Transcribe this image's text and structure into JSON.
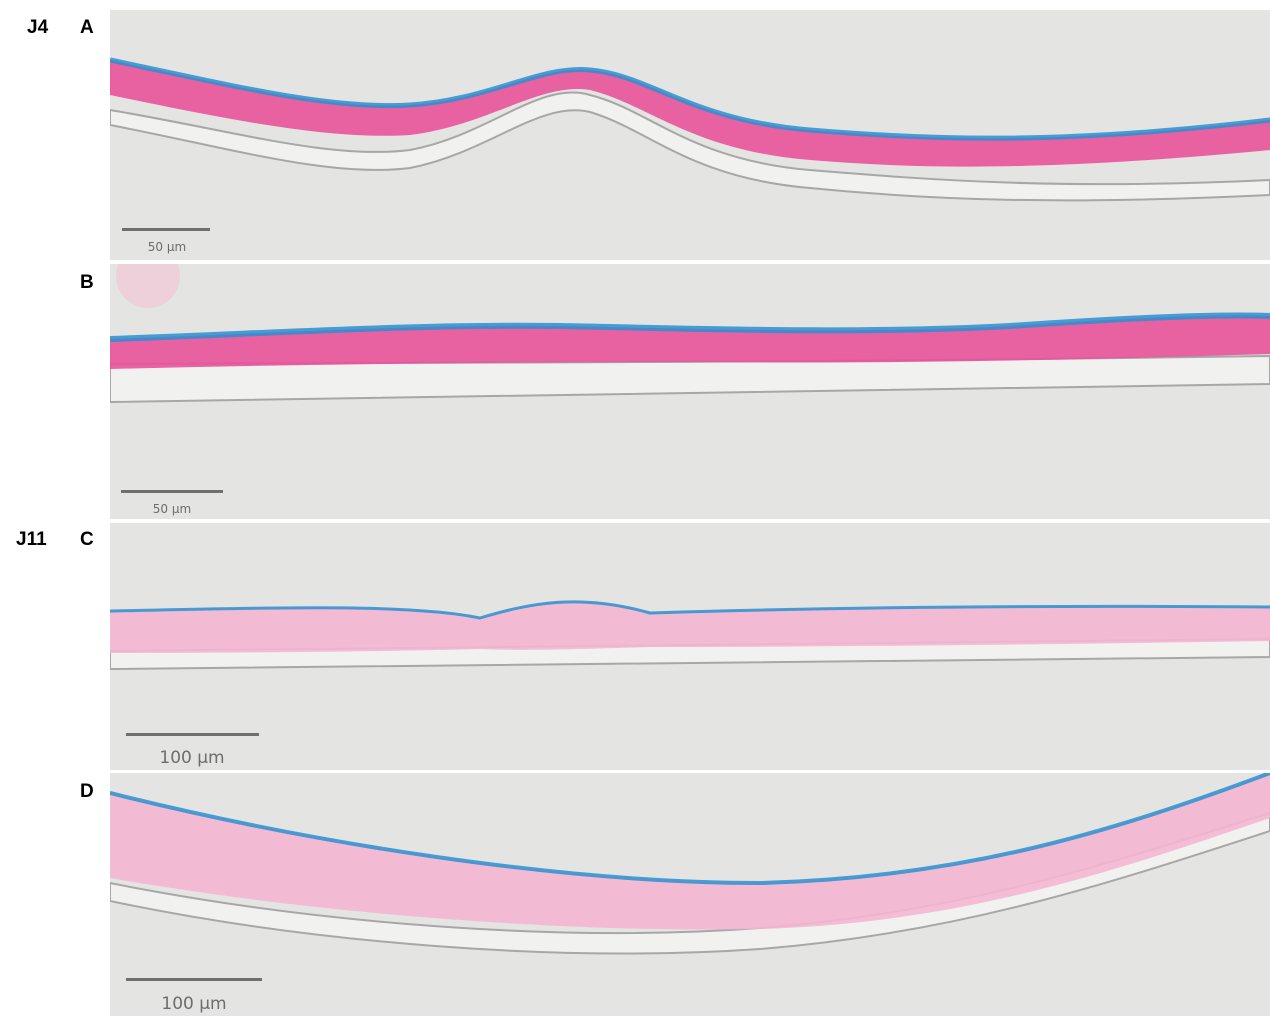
{
  "row_labels": {
    "j4": "J4",
    "j11": "J11"
  },
  "panels": [
    {
      "id": "A",
      "label": "A",
      "scale": "50 µm"
    },
    {
      "id": "B",
      "label": "B",
      "scale": "50 µm"
    },
    {
      "id": "C",
      "label": "C",
      "scale": "100 µm"
    },
    {
      "id": "D",
      "label": "D",
      "scale": "100 µm"
    }
  ],
  "colors": {
    "background": "#e4e4e2",
    "stain_pink": "#e8529a",
    "stain_blue": "#2a8fd0",
    "membrane_gray": "#bdbdbd"
  }
}
